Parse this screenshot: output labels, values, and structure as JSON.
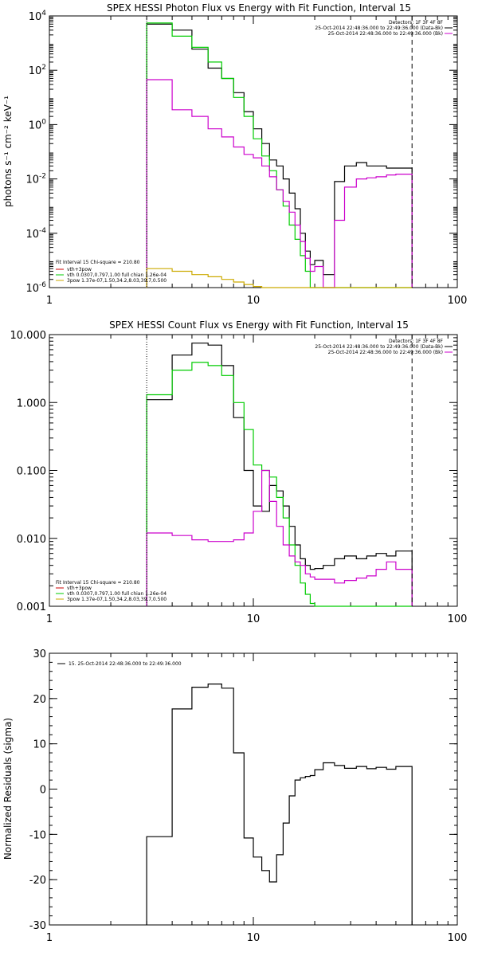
{
  "colors": {
    "data": "#000000",
    "total": "#00cc00",
    "thermal": "#00cc00",
    "powerlaw": "#ccaa00",
    "background": "#cc00cc",
    "fit_component_red": "#cc0000",
    "range_marker": "#000000"
  },
  "chart_data": [
    {
      "type": "line",
      "title": "SPEX HESSI Photon Flux vs Energy with Fit Function, Interval 15",
      "xlabel": "",
      "ylabel": "photons s⁻¹ cm⁻² keV⁻¹",
      "xscale": "log",
      "yscale": "log",
      "xlim": [
        1,
        100
      ],
      "ylim": [
        1e-06,
        10000
      ],
      "x_ticks": [
        "1",
        "10",
        "100"
      ],
      "y_ticks": [
        {
          "base": "10",
          "exp": "4"
        },
        {
          "base": "10",
          "exp": "2"
        },
        {
          "base": "10",
          "exp": "0"
        },
        {
          "base": "10",
          "exp": "-2"
        },
        {
          "base": "10",
          "exp": "-4"
        },
        {
          "base": "10",
          "exp": "-6"
        }
      ],
      "edges": [
        3,
        4,
        5,
        6,
        7,
        8,
        9,
        10,
        11,
        12,
        13,
        14,
        15,
        16,
        17,
        18,
        19,
        20,
        22,
        25,
        28,
        32,
        36,
        40,
        45,
        50,
        60
      ],
      "legend_header": [
        "Detectors: 1F 3F 4F 8F",
        "25-Oct-2014 22:48:36.000 to 22:49:36.000 (Data-Bk)",
        "25-Oct-2014 22:48:36.000 to 22:49:36.000 (Bk)"
      ],
      "fit_legend": [
        "Fit Interval 15   Chi-square = 210.80",
        "vth+3pow",
        "vth 0.0307,0.797,1.00  full chian 1.26e-04",
        "3pow 1.37e-07,1.50,34.2,8.03,39.7,0.500"
      ],
      "series": [
        {
          "name": "25-Oct-2014 22:48:36.000 to 22:49:36.000 (Data-Bk)",
          "color": "#000000",
          "values": [
            5000,
            3000,
            600,
            120,
            50,
            15,
            3,
            0.7,
            0.2,
            0.05,
            0.03,
            0.01,
            0.003,
            0.0008,
            0.0001,
            2.2e-05,
            7e-06,
            1e-05,
            3e-06,
            0.008,
            0.03,
            0.04,
            0.03,
            0.03,
            0.025,
            0.025
          ]
        },
        {
          "name": "vth 0.0307,0.797,1.00  full chian 1.26e-04",
          "color": "#00cc00",
          "values": [
            5500,
            1800,
            700,
            200,
            50,
            10,
            2,
            0.3,
            0.07,
            0.02,
            0.004,
            0.001,
            0.0002,
            6e-05,
            1.5e-05,
            4e-06,
            1e-06,
            1e-06,
            1e-06,
            1e-06,
            1e-06,
            1e-06,
            1e-06,
            1e-06,
            1e-06,
            1e-06
          ]
        },
        {
          "name": "25-Oct-2014 22:48:36.000 to 22:49:36.000 (Bk)",
          "color": "#cc00cc",
          "values": [
            45,
            3.5,
            2,
            0.7,
            0.35,
            0.15,
            0.08,
            0.06,
            0.03,
            0.012,
            0.004,
            0.0015,
            0.0006,
            0.0002,
            5e-05,
            1.2e-05,
            4e-06,
            6e-06,
            1e-06,
            0.0003,
            0.005,
            0.01,
            0.011,
            0.012,
            0.014,
            0.015
          ]
        },
        {
          "name": "3pow 1.37e-07,1.50,34.2,8.03,39.7,0.500",
          "color": "#ccaa00",
          "values": [
            5e-06,
            4e-06,
            3e-06,
            2.5e-06,
            2e-06,
            1.6e-06,
            1.3e-06,
            1.1e-06,
            1e-06,
            1e-06,
            1e-06,
            1e-06,
            1e-06,
            1e-06,
            1e-06,
            1e-06,
            1e-06,
            1e-06,
            1e-06,
            1e-06,
            1e-06,
            1e-06,
            1e-06,
            1e-06,
            1e-06,
            1e-06
          ]
        }
      ],
      "vlines": [
        {
          "x": 3,
          "style": "dotted"
        },
        {
          "x": 60,
          "style": "dashed"
        }
      ]
    },
    {
      "type": "line",
      "title": "SPEX HESSI Count Flux vs Energy with Fit Function, Interval 15",
      "xlabel": "",
      "ylabel": "",
      "xscale": "log",
      "yscale": "log",
      "xlim": [
        1,
        100
      ],
      "ylim": [
        0.001,
        10
      ],
      "x_ticks": [
        "1",
        "10",
        "100"
      ],
      "y_ticks": [
        "10.000",
        "1.000",
        "0.100",
        "0.010",
        "0.001"
      ],
      "edges": [
        3,
        4,
        5,
        6,
        7,
        8,
        9,
        10,
        11,
        12,
        13,
        14,
        15,
        16,
        17,
        18,
        19,
        20,
        22,
        25,
        28,
        32,
        36,
        40,
        45,
        50,
        60
      ],
      "legend_header": [
        "Detectors: 1F 3F 4F 8F",
        "25-Oct-2014 22:48:36.000 to 22:49:36.000 (Data-Bk)",
        "25-Oct-2014 22:48:36.000 to 22:49:36.000 (Bk)"
      ],
      "fit_legend": [
        "Fit Interval 15   Chi-square = 210.80",
        "vth+3pow",
        "vth 0.0307,0.797,1.00  full chian 1.26e-04",
        "3pow 1.37e-07,1.50,34.2,8.03,39.7,0.500"
      ],
      "series": [
        {
          "name": "25-Oct-2014 22:48:36.000 to 22:49:36.000 (Data-Bk)",
          "color": "#000000",
          "values": [
            1.1,
            5,
            7.5,
            7,
            3.5,
            0.6,
            0.1,
            0.03,
            0.025,
            0.06,
            0.05,
            0.03,
            0.015,
            0.008,
            0.005,
            0.004,
            0.0035,
            0.0036,
            0.004,
            0.005,
            0.0055,
            0.005,
            0.0055,
            0.006,
            0.0055,
            0.0065
          ]
        },
        {
          "name": "vth 0.0307,0.797,1.00  full chian 1.26e-04",
          "color": "#00cc00",
          "values": [
            1.3,
            3,
            3.9,
            3.5,
            2.5,
            1,
            0.4,
            0.12,
            0.1,
            0.08,
            0.04,
            0.02,
            0.008,
            0.004,
            0.0022,
            0.0015,
            0.0011,
            0.001,
            0.001,
            0.001,
            0.001,
            0.001,
            0.001,
            0.001,
            0.001,
            0.001
          ]
        },
        {
          "name": "25-Oct-2014 22:48:36.000 to 22:49:36.000 (Bk)",
          "color": "#cc00cc",
          "values": [
            0.012,
            0.011,
            0.0095,
            0.009,
            0.009,
            0.0095,
            0.012,
            0.025,
            0.1,
            0.035,
            0.015,
            0.008,
            0.0055,
            0.0045,
            0.004,
            0.003,
            0.0027,
            0.0025,
            0.0025,
            0.0022,
            0.0024,
            0.0026,
            0.0028,
            0.0035,
            0.0045,
            0.0035
          ]
        }
      ],
      "vlines": [
        {
          "x": 3,
          "style": "dotted"
        },
        {
          "x": 60,
          "style": "dashed"
        }
      ]
    },
    {
      "type": "line",
      "title": "",
      "xlabel": "",
      "ylabel": "Normalized Residuals (sigma)",
      "xscale": "log",
      "yscale": "linear",
      "xlim": [
        1,
        100
      ],
      "ylim": [
        -30,
        30
      ],
      "x_ticks": [
        "1",
        "10",
        "100"
      ],
      "y_ticks": [
        "30",
        "20",
        "10",
        "0",
        "-10",
        "-20",
        "-30"
      ],
      "edges": [
        3,
        4,
        5,
        6,
        7,
        8,
        9,
        10,
        11,
        12,
        13,
        14,
        15,
        16,
        17,
        18,
        19,
        20,
        22,
        25,
        28,
        32,
        36,
        40,
        45,
        50,
        60
      ],
      "legend": [
        "15. 25-Oct-2014 22:48:36.000 to 22:49:36.000"
      ],
      "series": [
        {
          "name": "15. 25-Oct-2014 22:48:36.000 to 22:49:36.000",
          "color": "#000000",
          "values": [
            -10.5,
            17.7,
            22.5,
            23.2,
            22.3,
            8,
            -10.8,
            -15,
            -18,
            -20.5,
            -14.5,
            -7.5,
            -1.5,
            2,
            2.5,
            2.8,
            3,
            4.3,
            5.8,
            5.2,
            4.6,
            5,
            4.5,
            4.8,
            4.4,
            5
          ]
        }
      ]
    }
  ]
}
